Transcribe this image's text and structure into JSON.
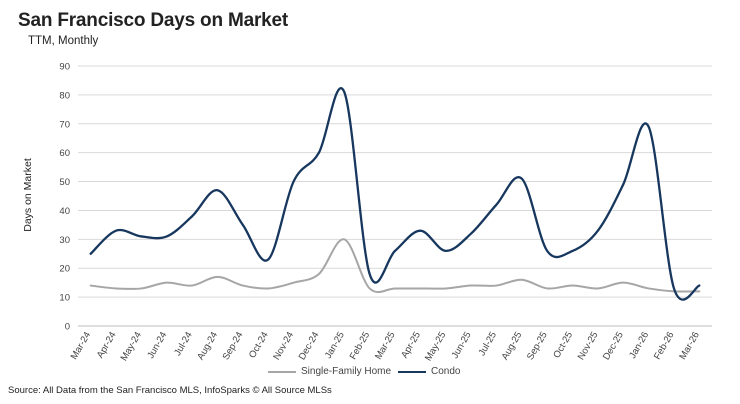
{
  "chart_data": {
    "type": "line",
    "title": "San Francisco Days on Market",
    "subtitle": "TTM, Monthly",
    "ylabel": "Days on Market",
    "xlabel": "",
    "ylim": [
      0,
      90
    ],
    "yticks": [
      "0",
      "10",
      "20",
      "30",
      "40",
      "50",
      "60",
      "70",
      "80",
      "90"
    ],
    "grid": "horizontal",
    "legend_position": "bottom",
    "categories": [
      "Mar-24",
      "Apr-24",
      "May-24",
      "Jun-24",
      "Jul-24",
      "Aug-24",
      "Sep-24",
      "Oct-24",
      "Nov-24",
      "Dec-24",
      "Jan-25",
      "Feb-25",
      "Mar-25",
      "Apr-25",
      "May-25",
      "Jun-25",
      "Jul-25",
      "Aug-25",
      "Sep-25",
      "Oct-25",
      "Nov-25",
      "Dec-25",
      "Jan-26",
      "Feb-26",
      "Mar-26"
    ],
    "series": [
      {
        "name": "Single-Family Home",
        "color": "#a6a6a6",
        "values": [
          14,
          13,
          13,
          15,
          14,
          17,
          14,
          13,
          15,
          18,
          30,
          13,
          13,
          13,
          13,
          14,
          14,
          16,
          13,
          14,
          13,
          15,
          13,
          12,
          12
        ]
      },
      {
        "name": "Condo",
        "color": "#17375e",
        "values": [
          25,
          33,
          31,
          31,
          38,
          47,
          35,
          23,
          50,
          60,
          81,
          18,
          26,
          33,
          26,
          32,
          42,
          51,
          26,
          26,
          33,
          49,
          69,
          13,
          14
        ]
      }
    ]
  },
  "source": "Source: All Data from the San Francisco MLS, InfoSparks © All Source MLSs"
}
